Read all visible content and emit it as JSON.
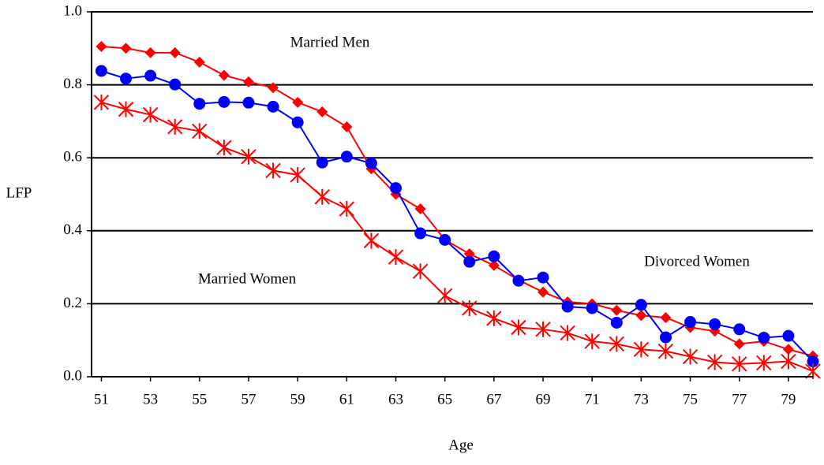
{
  "chart_data": {
    "type": "line",
    "x_label": "Age",
    "y_label": "LFP",
    "x": [
      51,
      52,
      53,
      54,
      55,
      56,
      57,
      58,
      59,
      60,
      61,
      62,
      63,
      64,
      65,
      66,
      67,
      68,
      69,
      70,
      71,
      72,
      73,
      74,
      75,
      76,
      77,
      78,
      79,
      80
    ],
    "xlim": [
      50.6,
      80
    ],
    "xticks": [
      51,
      53,
      55,
      57,
      59,
      61,
      63,
      65,
      67,
      69,
      71,
      73,
      75,
      77,
      79
    ],
    "ylim": [
      0,
      1
    ],
    "yticks": [
      {
        "value": 0,
        "label": "0.0"
      },
      0.2,
      0.4,
      0.6,
      0.8,
      {
        "value": 1,
        "label": "1.0"
      }
    ],
    "grid": true,
    "series": [
      {
        "name": "Married Men",
        "color": "#ff0000",
        "marker": "diamond",
        "values": [
          0.905,
          0.9,
          0.888,
          0.888,
          0.862,
          0.826,
          0.808,
          0.792,
          0.752,
          0.726,
          0.685,
          0.57,
          0.5,
          0.46,
          0.375,
          0.337,
          0.305,
          0.265,
          0.232,
          0.205,
          0.2,
          0.182,
          0.168,
          0.162,
          0.135,
          0.125,
          0.09,
          0.097,
          0.075,
          0.057
        ]
      },
      {
        "name": "Divorced Women",
        "color": "#0000ff",
        "marker": "circle",
        "values": [
          0.838,
          0.817,
          0.825,
          0.801,
          0.748,
          0.753,
          0.751,
          0.74,
          0.697,
          0.587,
          0.603,
          0.585,
          0.517,
          0.393,
          0.375,
          0.315,
          0.33,
          0.263,
          0.272,
          0.192,
          0.188,
          0.148,
          0.197,
          0.108,
          0.15,
          0.144,
          0.13,
          0.107,
          0.112,
          0.042
        ]
      },
      {
        "name": "Married Women",
        "color": "#ff0000",
        "marker": "asterisk",
        "values": [
          0.752,
          0.733,
          0.718,
          0.685,
          0.673,
          0.628,
          0.603,
          0.565,
          0.553,
          0.493,
          0.46,
          0.373,
          0.328,
          0.289,
          0.222,
          0.188,
          0.16,
          0.135,
          0.13,
          0.12,
          0.097,
          0.09,
          0.075,
          0.07,
          0.055,
          0.04,
          0.035,
          0.038,
          0.042,
          0.015
        ]
      }
    ]
  }
}
